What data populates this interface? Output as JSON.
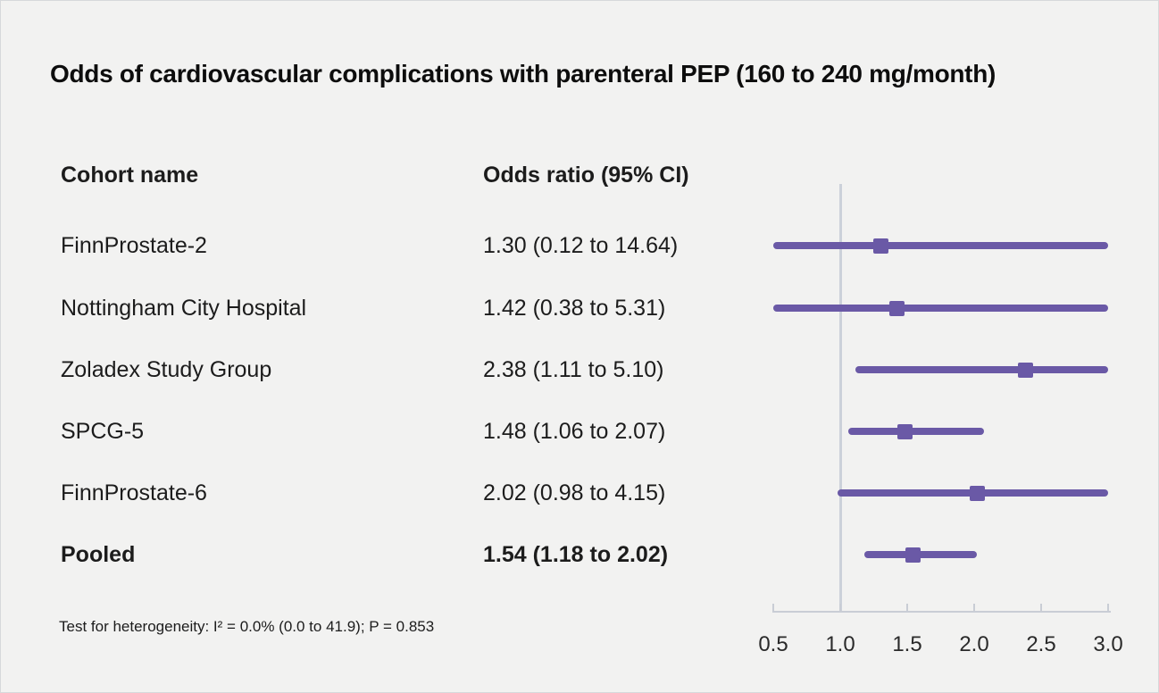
{
  "title": "Odds of cardiovascular complications with parenteral PEP (160 to 240 mg/month)",
  "table": {
    "cohort_header": "Cohort name",
    "or_header": "Odds ratio (95% CI)"
  },
  "footnote": "Test for heterogeneity: I² = 0.0% (0.0 to 41.9); P = 0.853",
  "chart_data": {
    "type": "forest",
    "title": "Odds of cardiovascular complications with parenteral PEP (160 to 240 mg/month)",
    "xlabel": "",
    "ylabel": "",
    "axis": {
      "min": 0.5,
      "max": 3.0,
      "reference": 1.0,
      "ticks": [
        0.5,
        1.0,
        1.5,
        2.0,
        2.5,
        3.0
      ],
      "tick_labels": [
        "0.5",
        "1.0",
        "1.5",
        "2.0",
        "2.5",
        "3.0"
      ]
    },
    "rows": [
      {
        "name": "FinnProstate-2",
        "or_label": "1.30 (0.12 to 14.64)",
        "or": 1.3,
        "ci_low": 0.12,
        "ci_high": 14.64,
        "bold": false
      },
      {
        "name": "Nottingham City Hospital",
        "or_label": "1.42 (0.38 to 5.31)",
        "or": 1.42,
        "ci_low": 0.38,
        "ci_high": 5.31,
        "bold": false
      },
      {
        "name": "Zoladex Study Group",
        "or_label": "2.38 (1.11 to 5.10)",
        "or": 2.38,
        "ci_low": 1.11,
        "ci_high": 5.1,
        "bold": false
      },
      {
        "name": "SPCG-5",
        "or_label": "1.48 (1.06 to 2.07)",
        "or": 1.48,
        "ci_low": 1.06,
        "ci_high": 2.07,
        "bold": false
      },
      {
        "name": "FinnProstate-6",
        "or_label": "2.02 (0.98 to 4.15)",
        "or": 2.02,
        "ci_low": 0.98,
        "ci_high": 4.15,
        "bold": false
      },
      {
        "name": "Pooled",
        "or_label": "1.54 (1.18 to 2.02)",
        "or": 1.54,
        "ci_low": 1.18,
        "ci_high": 2.02,
        "bold": true
      }
    ],
    "colors": {
      "marker": "#6a59a6",
      "axis_line": "#c9cdd5",
      "reference_line": "#ccd1da",
      "background": "#f2f2f1",
      "text": "#1c1c1c"
    }
  }
}
